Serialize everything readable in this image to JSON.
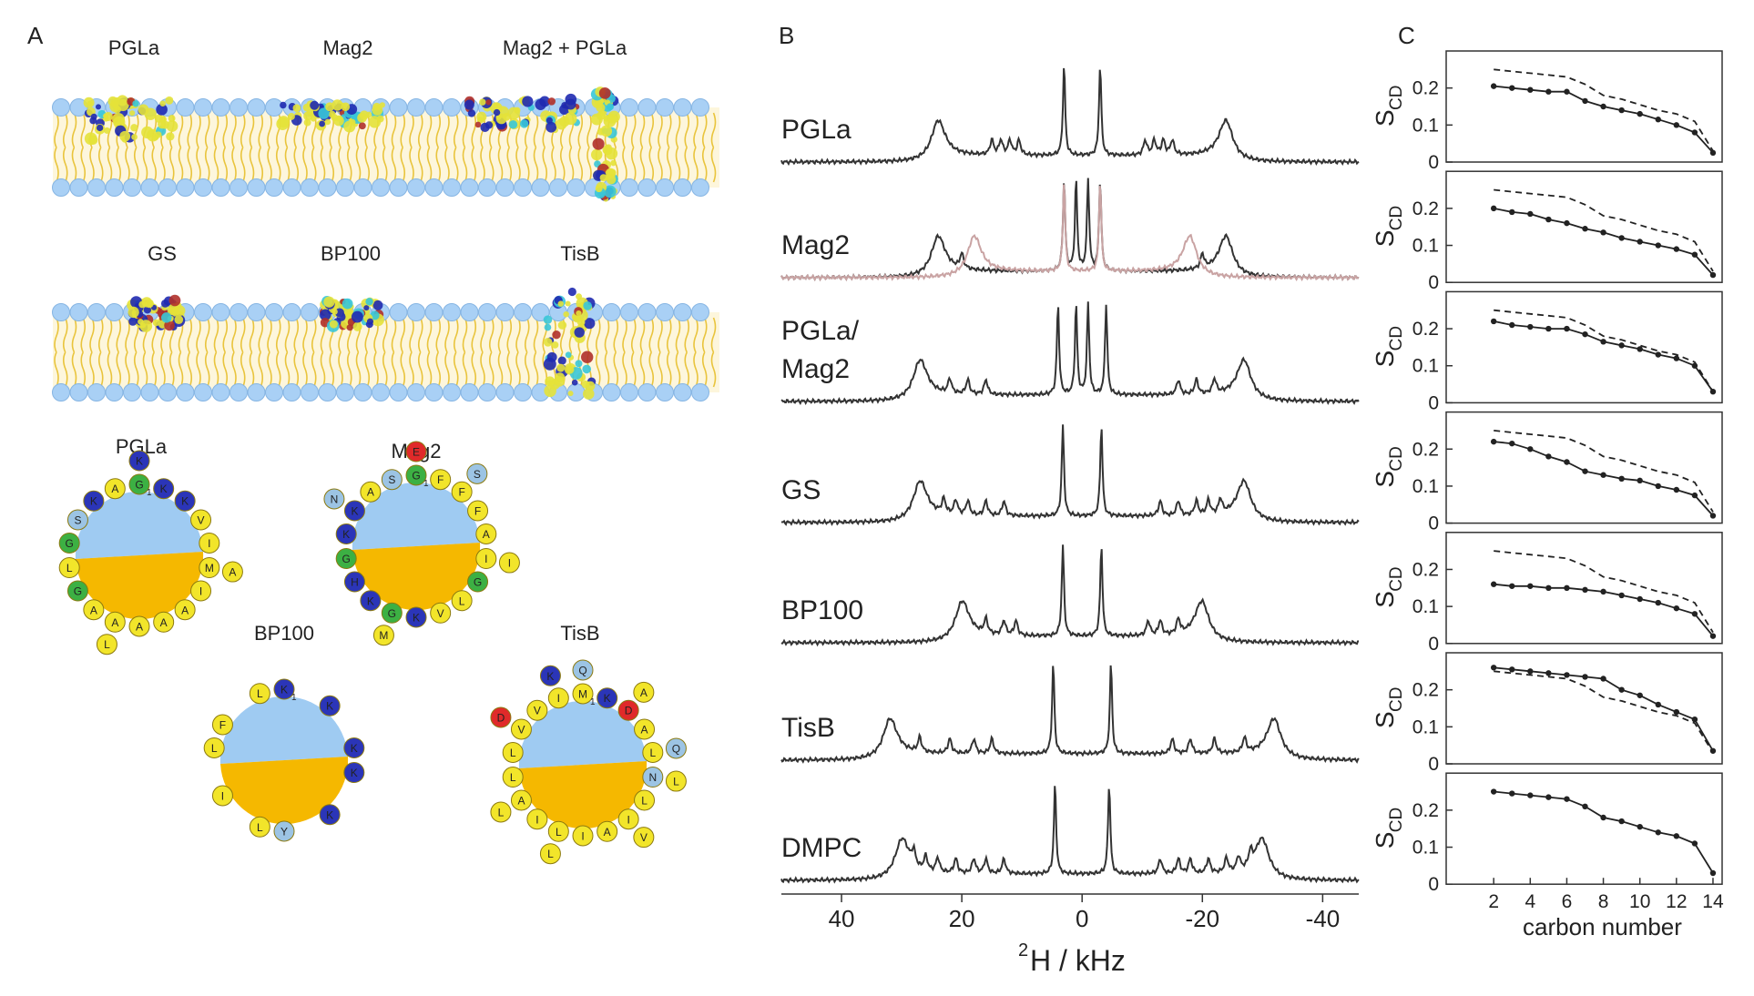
{
  "panel_labels": [
    "A",
    "B",
    "C"
  ],
  "panel_a": {
    "membranes": [
      {
        "labels": [
          "PGLa",
          "Mag2",
          "Mag2 + PGLa"
        ]
      },
      {
        "labels": [
          "GS",
          "BP100",
          "TisB"
        ]
      }
    ],
    "residue_colors": {
      "K": "#2b35b8",
      "H": "#2b35b8",
      "G": "#3cb043",
      "D": "#e02a2a",
      "E": "#e02a2a",
      "S": "#9cc4e4",
      "N": "#9cc4e4",
      "Q": "#9cc4e4",
      "Y": "#9cc4e4",
      "T": "#9cc4e4",
      "other": "#f2e52a"
    },
    "wheels": [
      {
        "name": "PGLa",
        "first": "1",
        "sequence": [
          "G",
          "M",
          "A",
          "S",
          "K",
          "A",
          "G",
          "A",
          "I",
          "A",
          "G",
          "K",
          "I",
          "A",
          "K",
          "V",
          "A",
          "L",
          "K",
          "A",
          "L"
        ]
      },
      {
        "name": "Mag2",
        "first": "1",
        "sequence": [
          "G",
          "I",
          "G",
          "K",
          "F",
          "L",
          "H",
          "S",
          "A",
          "K",
          "K",
          "F",
          "G",
          "K",
          "A",
          "F",
          "V",
          "G",
          "E",
          "I",
          "M",
          "N",
          "S"
        ]
      },
      {
        "name": "BP100",
        "first": "1",
        "sequence": [
          "K",
          "K",
          "L",
          "F",
          "K",
          "K",
          "I",
          "L",
          "K",
          "Y",
          "L"
        ]
      },
      {
        "name": "TisB",
        "first": "1",
        "sequence": [
          "M",
          "N",
          "L",
          "V",
          "D",
          "I",
          "A",
          "I",
          "L",
          "I",
          "L",
          "K",
          "L",
          "I",
          "V",
          "A",
          "A",
          "L",
          "Q",
          "L",
          "L",
          "D",
          "A",
          "V",
          "L",
          "K",
          "Q"
        ]
      }
    ]
  },
  "chart_data": [
    {
      "type": "spectrum",
      "xlabel_sup": "2",
      "xlabel": "H / kHz",
      "xlim": [
        50,
        -46
      ],
      "xticks": [
        40,
        20,
        0,
        -20,
        -40
      ],
      "spectra": [
        {
          "label": [
            "PGLa"
          ],
          "traces": [
            {
              "color": "#333333",
              "peaks": [
                24,
                15,
                13.5,
                12,
                10.5,
                3
              ]
            }
          ]
        },
        {
          "label": [
            "Mag2"
          ],
          "traces": [
            {
              "color": "#333333",
              "peaks": [
                24,
                20,
                3,
                1
              ]
            },
            {
              "color": "#c9a3a3",
              "peaks": [
                18,
                3
              ]
            }
          ]
        },
        {
          "label": [
            "PGLa/",
            "Mag2"
          ],
          "traces": [
            {
              "color": "#333333",
              "peaks": [
                27,
                22,
                19,
                16,
                4,
                1
              ]
            }
          ]
        },
        {
          "label": [
            "GS"
          ],
          "traces": [
            {
              "color": "#333333",
              "peaks": [
                27,
                23,
                21,
                19,
                16,
                13,
                3.2
              ]
            }
          ]
        },
        {
          "label": [
            "BP100"
          ],
          "traces": [
            {
              "color": "#333333",
              "peaks": [
                20,
                16,
                13,
                11,
                3.2
              ]
            }
          ]
        },
        {
          "label": [
            "TisB"
          ],
          "traces": [
            {
              "color": "#333333",
              "peaks": [
                32,
                27,
                22,
                18,
                15,
                4.8
              ]
            }
          ]
        },
        {
          "label": [
            "DMPC"
          ],
          "traces": [
            {
              "color": "#333333",
              "peaks": [
                30,
                28,
                26,
                24,
                21,
                18,
                16,
                13,
                4.5
              ]
            }
          ]
        }
      ]
    },
    {
      "type": "line",
      "ylabel": "S",
      "ylabel_sub": "CD",
      "xlim": [
        -0.6,
        14.5
      ],
      "ylim": [
        0,
        0.3
      ],
      "yticks": [
        0,
        0.1,
        0.2
      ],
      "x": [
        2,
        3,
        4,
        5,
        6,
        7,
        8,
        9,
        10,
        11,
        12,
        13,
        14
      ],
      "series": [
        {
          "color": "#222222",
          "values": [
            0.205,
            0.2,
            0.195,
            0.19,
            0.19,
            0.165,
            0.15,
            0.14,
            0.13,
            0.115,
            0.1,
            0.08,
            0.025
          ]
        },
        {
          "color": "#222222",
          "dash": true,
          "values": [
            0.25,
            0.245,
            0.24,
            0.235,
            0.23,
            0.21,
            0.18,
            0.17,
            0.155,
            0.14,
            0.13,
            0.11,
            0.03
          ]
        }
      ]
    },
    {
      "type": "line",
      "ylabel": "S",
      "ylabel_sub": "CD",
      "xlim": [
        -0.6,
        14.5
      ],
      "ylim": [
        0,
        0.3
      ],
      "yticks": [
        0,
        0.1,
        0.2
      ],
      "x": [
        2,
        3,
        4,
        5,
        6,
        7,
        8,
        9,
        10,
        11,
        12,
        13,
        14
      ],
      "series": [
        {
          "color": "#222222",
          "values": [
            0.2,
            0.19,
            0.185,
            0.17,
            0.16,
            0.145,
            0.135,
            0.12,
            0.11,
            0.1,
            0.09,
            0.075,
            0.02
          ]
        },
        {
          "color": "#222222",
          "dash": true,
          "values": [
            0.25,
            0.245,
            0.24,
            0.235,
            0.23,
            0.21,
            0.18,
            0.17,
            0.155,
            0.14,
            0.13,
            0.11,
            0.03
          ]
        }
      ]
    },
    {
      "type": "line",
      "ylabel": "S",
      "ylabel_sub": "CD",
      "xlim": [
        -0.6,
        14.5
      ],
      "ylim": [
        0,
        0.3
      ],
      "yticks": [
        0,
        0.1,
        0.2
      ],
      "x": [
        2,
        3,
        4,
        5,
        6,
        7,
        8,
        9,
        10,
        11,
        12,
        13,
        14
      ],
      "series": [
        {
          "color": "#222222",
          "values": [
            0.22,
            0.21,
            0.205,
            0.2,
            0.2,
            0.185,
            0.165,
            0.155,
            0.145,
            0.13,
            0.12,
            0.1,
            0.03
          ]
        },
        {
          "color": "#222222",
          "dash": true,
          "values": [
            0.25,
            0.245,
            0.24,
            0.235,
            0.23,
            0.21,
            0.18,
            0.17,
            0.155,
            0.14,
            0.13,
            0.11,
            0.03
          ]
        }
      ]
    },
    {
      "type": "line",
      "ylabel": "S",
      "ylabel_sub": "CD",
      "xlim": [
        -0.6,
        14.5
      ],
      "ylim": [
        0,
        0.3
      ],
      "yticks": [
        0,
        0.1,
        0.2
      ],
      "x": [
        2,
        3,
        4,
        5,
        6,
        7,
        8,
        9,
        10,
        11,
        12,
        13,
        14
      ],
      "series": [
        {
          "color": "#222222",
          "values": [
            0.22,
            0.215,
            0.2,
            0.18,
            0.165,
            0.14,
            0.13,
            0.12,
            0.115,
            0.1,
            0.09,
            0.075,
            0.02
          ]
        },
        {
          "color": "#222222",
          "dash": true,
          "values": [
            0.25,
            0.245,
            0.24,
            0.235,
            0.23,
            0.21,
            0.18,
            0.17,
            0.155,
            0.14,
            0.13,
            0.11,
            0.03
          ]
        }
      ]
    },
    {
      "type": "line",
      "ylabel": "S",
      "ylabel_sub": "CD",
      "xlim": [
        -0.6,
        14.5
      ],
      "ylim": [
        0,
        0.3
      ],
      "yticks": [
        0,
        0.1,
        0.2
      ],
      "x": [
        2,
        3,
        4,
        5,
        6,
        7,
        8,
        9,
        10,
        11,
        12,
        13,
        14
      ],
      "series": [
        {
          "color": "#222222",
          "values": [
            0.16,
            0.155,
            0.155,
            0.15,
            0.15,
            0.145,
            0.14,
            0.13,
            0.12,
            0.11,
            0.095,
            0.08,
            0.02
          ]
        },
        {
          "color": "#222222",
          "dash": true,
          "values": [
            0.25,
            0.245,
            0.24,
            0.235,
            0.23,
            0.21,
            0.18,
            0.17,
            0.155,
            0.14,
            0.13,
            0.11,
            0.03
          ]
        }
      ]
    },
    {
      "type": "line",
      "ylabel": "S",
      "ylabel_sub": "CD",
      "xlim": [
        -0.6,
        14.5
      ],
      "ylim": [
        0,
        0.3
      ],
      "yticks": [
        0,
        0.1,
        0.2
      ],
      "x": [
        2,
        3,
        4,
        5,
        6,
        7,
        8,
        9,
        10,
        11,
        12,
        13,
        14
      ],
      "series": [
        {
          "color": "#222222",
          "values": [
            0.26,
            0.255,
            0.25,
            0.245,
            0.24,
            0.235,
            0.23,
            0.2,
            0.185,
            0.16,
            0.14,
            0.12,
            0.035
          ]
        },
        {
          "color": "#222222",
          "dash": true,
          "values": [
            0.25,
            0.245,
            0.24,
            0.235,
            0.23,
            0.21,
            0.18,
            0.17,
            0.155,
            0.14,
            0.13,
            0.11,
            0.03
          ]
        }
      ]
    },
    {
      "type": "line",
      "ylabel": "S",
      "ylabel_sub": "CD",
      "xlim": [
        -0.6,
        14.5
      ],
      "ylim": [
        0,
        0.3
      ],
      "yticks": [
        0,
        0.1,
        0.2
      ],
      "x": [
        2,
        3,
        4,
        5,
        6,
        7,
        8,
        9,
        10,
        11,
        12,
        13,
        14
      ],
      "xticks": [
        2,
        4,
        6,
        8,
        10,
        12,
        14
      ],
      "xlabel": "carbon number",
      "series": [
        {
          "color": "#222222",
          "values": [
            0.25,
            0.245,
            0.24,
            0.235,
            0.23,
            0.21,
            0.18,
            0.17,
            0.155,
            0.14,
            0.13,
            0.11,
            0.03
          ]
        }
      ]
    }
  ]
}
